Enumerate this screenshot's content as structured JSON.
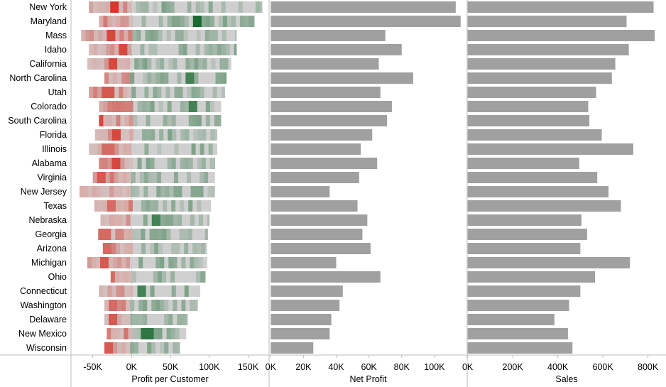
{
  "chart_data": {
    "type": "bar",
    "categories": [
      "New York",
      "Maryland",
      "Mass",
      "Idaho",
      "California",
      "North Carolina",
      "Utah",
      "Colorado",
      "South Carolina",
      "Florida",
      "Illinois",
      "Alabama",
      "Virginia",
      "New Jersey",
      "Texas",
      "Nebraska",
      "Georgia",
      "Arizona",
      "Michigan",
      "Ohio",
      "Connecticut",
      "Washington",
      "Delaware",
      "New Mexico",
      "Wisconsin"
    ],
    "panels": [
      {
        "xlabel": "Profit per Customer",
        "ticks": [
          -50000,
          0,
          50000,
          100000,
          150000
        ],
        "tick_labels": [
          "-50K",
          "0K",
          "50K",
          "100K",
          "150K"
        ],
        "xlim": [
          -78000,
          177000
        ],
        "ranges": [
          [
            -55000,
            168000
          ],
          [
            -42000,
            158000
          ],
          [
            -65000,
            135000
          ],
          [
            -55000,
            135000
          ],
          [
            -57000,
            128000
          ],
          [
            -35000,
            122000
          ],
          [
            -55000,
            120000
          ],
          [
            -42000,
            115000
          ],
          [
            -42000,
            115000
          ],
          [
            -47000,
            110000
          ],
          [
            -55000,
            110000
          ],
          [
            -42000,
            107000
          ],
          [
            -50000,
            107000
          ],
          [
            -67000,
            107000
          ],
          [
            -48000,
            102000
          ],
          [
            -40000,
            100000
          ],
          [
            -43000,
            98000
          ],
          [
            -37000,
            97000
          ],
          [
            -57000,
            97000
          ],
          [
            -27000,
            95000
          ],
          [
            -42000,
            88000
          ],
          [
            -35000,
            85000
          ],
          [
            -35000,
            72000
          ],
          [
            -32000,
            70000
          ],
          [
            -35000,
            62000
          ]
        ],
        "peaks": [
          [
            -20000,
            -4
          ],
          [
            85000,
            4
          ],
          [
            -25000,
            -3
          ],
          [
            -10000,
            -3
          ],
          [
            -25000,
            -3
          ],
          [
            75000,
            2
          ],
          [
            -30000,
            -2
          ],
          [
            80000,
            2
          ],
          [
            -40000,
            -3
          ],
          [
            -20000,
            -3
          ],
          [
            -30000,
            -1
          ],
          [
            -20000,
            -3
          ],
          [
            -40000,
            -2
          ],
          [
            -75000,
            -2
          ],
          [
            -28000,
            -1
          ],
          [
            30000,
            2
          ],
          [
            -35000,
            -1
          ],
          [
            -30000,
            -1
          ],
          [
            -35000,
            -2
          ],
          [
            -30000,
            -1
          ],
          [
            15000,
            2
          ],
          [
            -25000,
            -1
          ],
          [
            -25000,
            -2
          ],
          [
            20000,
            3
          ],
          [
            -30000,
            -2
          ]
        ]
      },
      {
        "xlabel": "Net Profit",
        "ticks": [
          0,
          20000,
          40000,
          60000,
          80000,
          100000
        ],
        "tick_labels": [
          "0K",
          "20K",
          "40K",
          "60K",
          "80K",
          "100K"
        ],
        "xlim": [
          -1000,
          120000
        ],
        "values": [
          113000,
          116000,
          70000,
          80000,
          66000,
          87000,
          67000,
          74000,
          71000,
          62000,
          55000,
          65000,
          54000,
          36000,
          53000,
          59000,
          56000,
          61000,
          40000,
          67000,
          44000,
          42000,
          37000,
          36000,
          26000
        ]
      },
      {
        "xlabel": "Sales",
        "ticks": [
          0,
          200000,
          400000,
          600000,
          800000
        ],
        "tick_labels": [
          "0K",
          "200K",
          "400K",
          "600K",
          "800K"
        ],
        "xlim": [
          -2000,
          880000
        ],
        "values": [
          825000,
          705000,
          830000,
          715000,
          655000,
          640000,
          570000,
          535000,
          540000,
          595000,
          735000,
          495000,
          575000,
          625000,
          680000,
          505000,
          530000,
          500000,
          720000,
          565000,
          500000,
          450000,
          385000,
          445000,
          465000
        ]
      }
    ],
    "colors": {
      "bar": "#a0a0a0",
      "neutral": "#cfcfcf",
      "positive": "#1a6b31",
      "negative": "#d7372c",
      "axis": "#bdbdbd",
      "zero_line": "#9a9a9a"
    },
    "grid": false,
    "legend": "none"
  }
}
